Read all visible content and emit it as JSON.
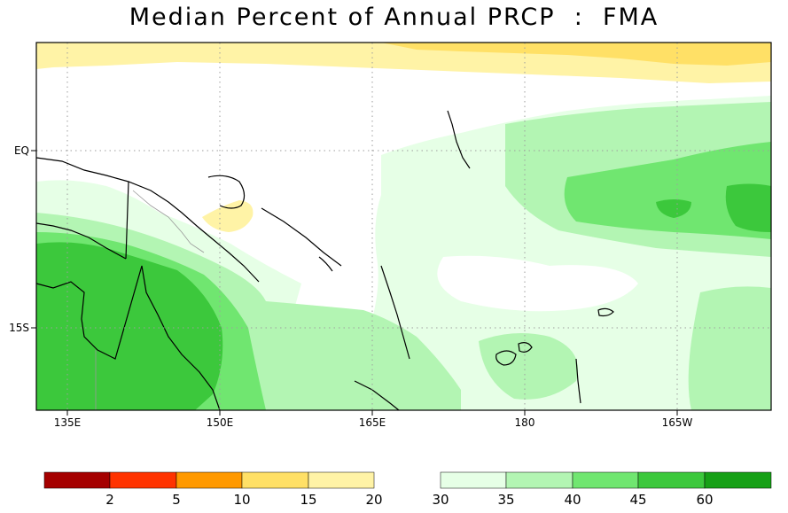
{
  "title": "Median Percent of Annual PRCP  :  FMA",
  "lat_labels": [
    "EQ",
    "15S"
  ],
  "lon_labels": [
    "135E",
    "150E",
    "165E",
    "180",
    "165W"
  ],
  "legend": {
    "dry": {
      "labels": [
        "2",
        "5",
        "10",
        "15",
        "20"
      ],
      "colors": [
        "#a50000",
        "#ff3300",
        "#ff9900",
        "#ffe066",
        "#fff3a6"
      ]
    },
    "wet": {
      "labels": [
        "30",
        "35",
        "40",
        "45",
        "60"
      ],
      "colors": [
        "#e6ffe6",
        "#b3f5b3",
        "#70e670",
        "#3cc83c",
        "#16a016"
      ]
    }
  },
  "colors": {
    "white_class": "#ffffff",
    "light_yellow": "#fff3a6",
    "yellow": "#ffe066",
    "coast": "#000000",
    "border": "#999999",
    "grid": "#9e9e9e"
  }
}
